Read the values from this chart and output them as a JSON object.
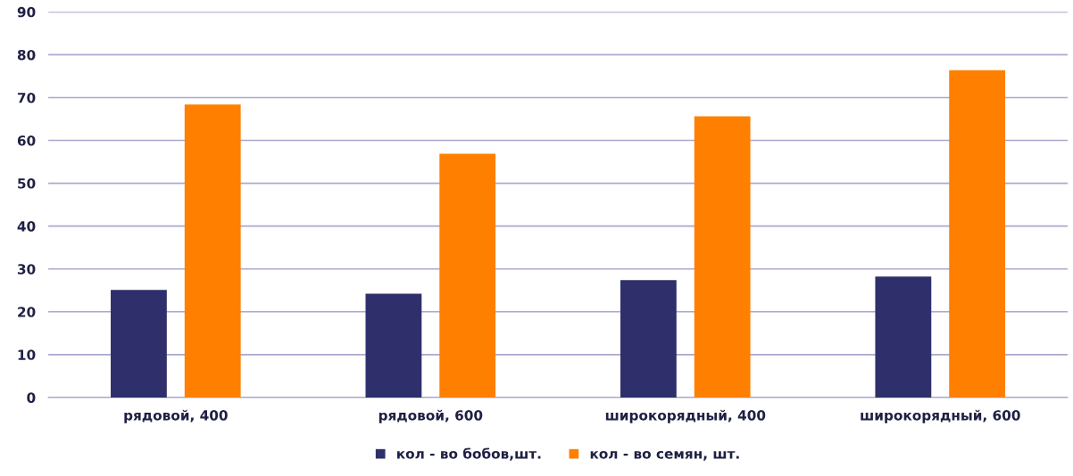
{
  "chart_data": {
    "type": "bar",
    "categories": [
      "рядовой, 400",
      "рядовой, 600",
      "широкорядный, 400",
      "широкорядный, 600"
    ],
    "series": [
      {
        "name": "кол - во бобов,шт.",
        "color": "#2e2f6b",
        "values": [
          25.1,
          24.2,
          27.4,
          28.2
        ]
      },
      {
        "name": "кол - во семян, шт.",
        "color": "#ff7f00",
        "values": [
          68.4,
          56.9,
          65.6,
          76.4
        ]
      }
    ],
    "ylim": [
      0,
      90
    ],
    "yticks": [
      0,
      10,
      20,
      30,
      40,
      50,
      60,
      70,
      80,
      90
    ],
    "grid": "y",
    "legend": "bottom"
  }
}
